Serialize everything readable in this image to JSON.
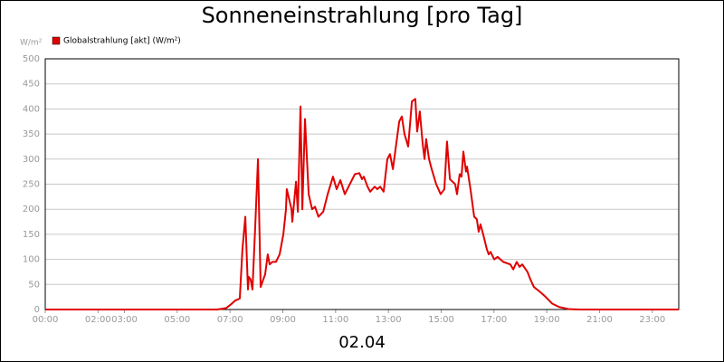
{
  "chart_data": {
    "type": "line",
    "title": "Sonneneinstrahlung [pro Tag]",
    "y_unit": "W/m²",
    "x_label": "02.04",
    "grid": true,
    "legend": "top-left",
    "xlim": [
      0,
      24
    ],
    "ylim": [
      0,
      500
    ],
    "yticks": [
      0,
      50,
      100,
      150,
      200,
      250,
      300,
      350,
      400,
      450,
      500
    ],
    "xticks": [
      {
        "value": 0,
        "label": "00:00"
      },
      {
        "value": 2,
        "label": "02:00"
      },
      {
        "value": 3,
        "label": "03:00"
      },
      {
        "value": 5,
        "label": "05:00"
      },
      {
        "value": 7,
        "label": "07:00"
      },
      {
        "value": 9,
        "label": "09:00"
      },
      {
        "value": 11,
        "label": "11:00"
      },
      {
        "value": 13,
        "label": "13:00"
      },
      {
        "value": 15,
        "label": "15:00"
      },
      {
        "value": 17,
        "label": "17:00"
      },
      {
        "value": 19,
        "label": "19:00"
      },
      {
        "value": 21,
        "label": "21:00"
      },
      {
        "value": 23,
        "label": "23:00"
      }
    ],
    "x": [
      0,
      6.51,
      6.86,
      7.03,
      7.2,
      7.37,
      7.47,
      7.58,
      7.68,
      7.71,
      7.78,
      7.85,
      7.95,
      8.06,
      8.16,
      8.33,
      8.43,
      8.5,
      8.61,
      8.74,
      8.88,
      9.02,
      9.12,
      9.15,
      9.33,
      9.36,
      9.5,
      9.57,
      9.67,
      9.74,
      9.84,
      9.98,
      10.11,
      10.22,
      10.35,
      10.53,
      10.7,
      10.9,
      11.04,
      11.18,
      11.35,
      11.49,
      11.73,
      11.9,
      12.0,
      12.07,
      12.21,
      12.31,
      12.48,
      12.58,
      12.69,
      12.82,
      12.96,
      13.06,
      13.17,
      13.41,
      13.51,
      13.61,
      13.75,
      13.89,
      14.02,
      14.09,
      14.19,
      14.3,
      14.37,
      14.43,
      14.54,
      14.64,
      14.81,
      14.98,
      15.12,
      15.22,
      15.33,
      15.53,
      15.6,
      15.7,
      15.77,
      15.84,
      15.94,
      15.98,
      16.11,
      16.25,
      16.35,
      16.42,
      16.49,
      16.59,
      16.73,
      16.8,
      16.87,
      17.01,
      17.14,
      17.35,
      17.62,
      17.73,
      17.86,
      17.97,
      18.07,
      18.27,
      18.38,
      18.51,
      18.75,
      18.96,
      19.2,
      19.47,
      19.82,
      20.23,
      24
    ],
    "series": [
      {
        "name": "Globalstrahlung [akt] (W/m²)",
        "color": "#e00000",
        "values": [
          0,
          0,
          3,
          10,
          18,
          22,
          120,
          185,
          40,
          65,
          60,
          40,
          160,
          300,
          45,
          70,
          110,
          90,
          95,
          95,
          110,
          150,
          200,
          240,
          200,
          175,
          255,
          195,
          405,
          200,
          380,
          230,
          200,
          205,
          185,
          195,
          230,
          265,
          240,
          258,
          230,
          245,
          270,
          272,
          260,
          265,
          245,
          235,
          245,
          240,
          245,
          235,
          300,
          310,
          280,
          375,
          385,
          350,
          325,
          415,
          420,
          355,
          395,
          330,
          300,
          340,
          300,
          280,
          250,
          230,
          240,
          335,
          260,
          250,
          230,
          270,
          265,
          315,
          275,
          285,
          240,
          185,
          180,
          155,
          170,
          150,
          120,
          110,
          115,
          100,
          105,
          95,
          90,
          80,
          95,
          85,
          90,
          75,
          60,
          45,
          35,
          25,
          12,
          5,
          1,
          0,
          0
        ]
      }
    ]
  }
}
